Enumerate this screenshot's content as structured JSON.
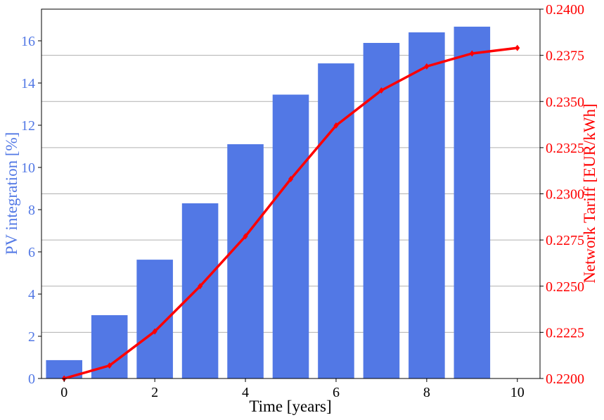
{
  "chart_data": {
    "type": "bar+line",
    "title": "",
    "xlabel": "Time [years]",
    "ylabel_left": "PV integration [%]",
    "ylabel_right": "Network Tariff [EUR/kWh]",
    "xlim": [
      -0.5,
      10.5
    ],
    "ylim_left": [
      0,
      17.5
    ],
    "ylim_right": [
      0.22,
      0.24
    ],
    "x_ticks": [
      "0",
      "2",
      "4",
      "6",
      "8",
      "10"
    ],
    "y_left_ticks": [
      "0",
      "2",
      "4",
      "6",
      "8",
      "10",
      "12",
      "14",
      "16"
    ],
    "y_right_ticks": [
      "0.2200",
      "0.2225",
      "0.2250",
      "0.2275",
      "0.2300",
      "0.2325",
      "0.2350",
      "0.2375",
      "0.2400"
    ],
    "grid": "horizontal at right-axis ticks",
    "colors": {
      "bars": "#5278e5",
      "line": "#ff0000",
      "left_axis": "#5278e5",
      "right_axis": "#ff0000",
      "grid": "#b0b0b0"
    },
    "series": [
      {
        "name": "PV integration",
        "type": "bar",
        "axis": "left",
        "x": [
          0,
          1,
          2,
          3,
          4,
          5,
          6,
          7,
          8,
          9
        ],
        "values": [
          0.87,
          3.0,
          5.63,
          8.3,
          11.1,
          13.45,
          14.93,
          15.9,
          16.4,
          16.67
        ]
      },
      {
        "name": "Network Tariff",
        "type": "line",
        "axis": "right",
        "x": [
          0,
          1,
          2,
          3,
          4,
          5,
          6,
          7,
          8,
          9,
          10
        ],
        "values": [
          0.22,
          0.2207,
          0.22255,
          0.225,
          0.2277,
          0.2308,
          0.2337,
          0.2356,
          0.2369,
          0.2376,
          0.2379
        ]
      }
    ]
  }
}
